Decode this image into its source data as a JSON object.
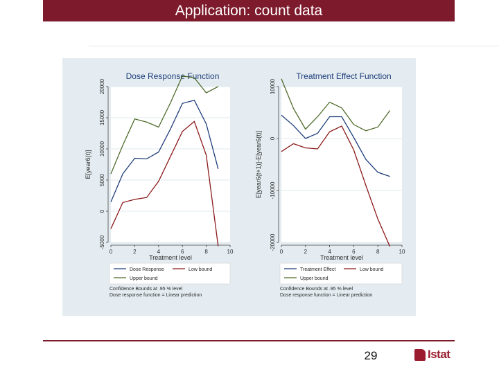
{
  "slide": {
    "title": "Application: count data",
    "page_number": "29",
    "logo_text": "Istat"
  },
  "colors": {
    "title_bar": "#7d1a2c",
    "panel_bg": "#e4ecf1",
    "plot_bg": "#ffffff",
    "estimate": "#1f3e7a",
    "low_bound": "#8b1a1a",
    "upper_bound": "#4f6b2b"
  },
  "chart_data": [
    {
      "type": "line",
      "title": "Dose Response Function",
      "xlabel": "Treatment level",
      "ylabel": "E[year6(t)]",
      "xlim": [
        0,
        10
      ],
      "ylim": [
        -5000,
        20000
      ],
      "x_ticks": [
        0,
        2,
        4,
        6,
        8,
        10
      ],
      "y_ticks": [
        -5000,
        0,
        5000,
        10000,
        15000,
        20000
      ],
      "x": [
        0,
        1,
        2,
        3,
        4,
        5,
        6,
        7,
        8,
        9
      ],
      "series": [
        {
          "name": "Dose Response",
          "role": "estimate",
          "values": [
            1500,
            6000,
            8500,
            8400,
            9500,
            13200,
            17300,
            17800,
            14000,
            6800
          ]
        },
        {
          "name": "Low bound",
          "role": "low",
          "values": [
            -2800,
            1400,
            1900,
            2200,
            4800,
            8800,
            12800,
            14400,
            9000,
            -5600
          ]
        },
        {
          "name": "Upper bound",
          "role": "upper",
          "values": [
            6000,
            10600,
            14800,
            14300,
            13500,
            17400,
            21700,
            21400,
            19000,
            20000
          ]
        }
      ],
      "legend": {
        "position": "bottom",
        "items": [
          "Dose Response",
          "Low bound",
          "Upper bound"
        ]
      },
      "notes": [
        "Confidence Bounds at .95 % level",
        "Dose response function = Linear prediction"
      ]
    },
    {
      "type": "line",
      "title": "Treatment Effect Function",
      "xlabel": "Treatment level",
      "ylabel": "E[year6(t+1)]-E[year6(t)]",
      "xlim": [
        0,
        10
      ],
      "ylim": [
        -20000,
        10000
      ],
      "x_ticks": [
        0,
        2,
        4,
        6,
        8,
        10
      ],
      "y_ticks": [
        -20000,
        -10000,
        0,
        10000
      ],
      "x": [
        0,
        1,
        2,
        3,
        4,
        5,
        6,
        7,
        8,
        9
      ],
      "series": [
        {
          "name": "Treatment Effect",
          "role": "estimate",
          "values": [
            4500,
            2500,
            0,
            1000,
            4200,
            4200,
            200,
            -4000,
            -6500,
            -7300
          ]
        },
        {
          "name": "Low bound",
          "role": "low",
          "values": [
            -2500,
            -1000,
            -1800,
            -2000,
            1300,
            2400,
            -2200,
            -9000,
            -15500,
            -20800
          ]
        },
        {
          "name": "Upper bound",
          "role": "upper",
          "values": [
            11500,
            5800,
            1800,
            4200,
            7000,
            5900,
            2700,
            1500,
            2200,
            5400
          ]
        }
      ],
      "legend": {
        "position": "bottom",
        "items": [
          "Treatment Effect",
          "Low bound",
          "Upper bound"
        ]
      },
      "notes": [
        "Confidence Bounds at .95 % level",
        "Dose response function = Linear prediction"
      ]
    }
  ]
}
